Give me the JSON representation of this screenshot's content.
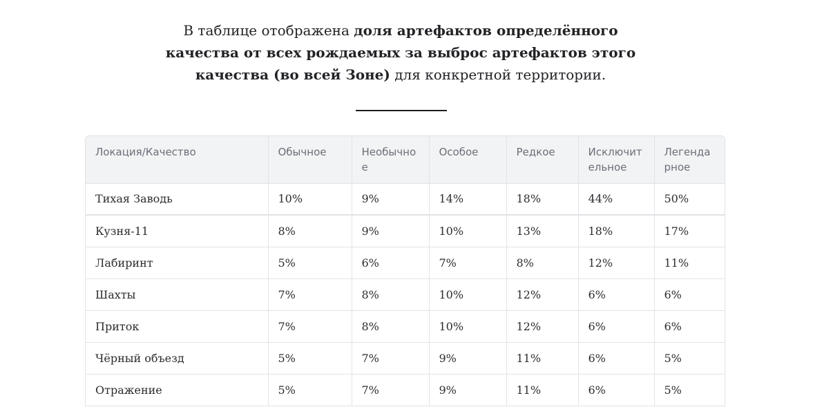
{
  "intro": {
    "part1": "В таблице отображена ",
    "bold": "доля артефактов определённого качества от всех рождаемых за выброс артефактов этого качества (во всей Зоне)",
    "part2": " для конкретной территории."
  },
  "table": {
    "headers": [
      "Локация/Качество",
      "Обычное",
      "Необычное",
      "Особое",
      "Редкое",
      "Исключительное",
      "Легендарное"
    ],
    "rows": [
      [
        "Тихая Заводь",
        "10%",
        "9%",
        "14%",
        "18%",
        "44%",
        "50%"
      ],
      [
        "Кузня-11",
        "8%",
        "9%",
        "10%",
        "13%",
        "18%",
        "17%"
      ],
      [
        "Лабиринт",
        "5%",
        "6%",
        "7%",
        "8%",
        "12%",
        "11%"
      ],
      [
        "Шахты",
        "7%",
        "8%",
        "10%",
        "12%",
        "6%",
        "6%"
      ],
      [
        "Приток",
        "7%",
        "8%",
        "10%",
        "12%",
        "6%",
        "6%"
      ],
      [
        "Чёрный объезд",
        "5%",
        "7%",
        "9%",
        "11%",
        "6%",
        "5%"
      ],
      [
        "Отражение",
        "5%",
        "7%",
        "9%",
        "11%",
        "6%",
        "5%"
      ]
    ]
  }
}
